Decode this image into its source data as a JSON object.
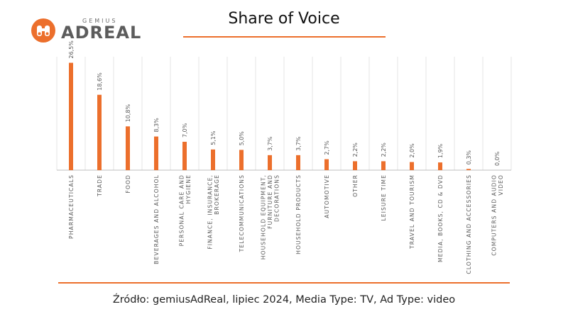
{
  "logo": {
    "brand_small": "GEMIUS",
    "brand_big": "ADREAL",
    "icon": "binoculars-icon"
  },
  "title": "Share of Voice",
  "source": "Źródło: gemiusAdReal, lipiec 2024, Media Type: TV, Ad Type: video",
  "colors": {
    "bar": "#ec6f2c",
    "accent": "#ec6f2c",
    "grid": "#e4e4e4",
    "axis": "#bfbfbf",
    "text": "#595959"
  },
  "chart_data": {
    "type": "bar",
    "title": "Share of Voice",
    "xlabel": "",
    "ylabel": "",
    "ylim": [
      0,
      28
    ],
    "grid": "vertical",
    "legend": "none",
    "categories": [
      "PHARMACEUTICALS",
      "TRADE",
      "FOOD",
      "BEVERAGES AND ALCOHOL",
      "PERSONAL CARE AND HYGIENE",
      "FINANCE, INSURANCE, BROKERAGE",
      "TELECOMMUNICATIONS",
      "HOUSEHOLD EQUIPMENT, FURNITURE AND DECORATIONS",
      "HOUSEHOLD PRODUCTS",
      "AUTOMOTIVE",
      "OTHER",
      "LEISURE TIME",
      "TRAVEL AND TOURISM",
      "MEDIA, BOOKS, CD & DVD",
      "CLOTHING AND ACCESSORIES",
      "COMPUTERS AND AUDIO VIDEO"
    ],
    "category_lines": [
      [
        "PHARMACEUTICALS"
      ],
      [
        "TRADE"
      ],
      [
        "FOOD"
      ],
      [
        "BEVERAGES AND ALCOHOL"
      ],
      [
        "PERSONAL CARE AND",
        "HYGIENE"
      ],
      [
        "FINANCE, INSURANCE,",
        "BROKERAGE"
      ],
      [
        "TELECOMMUNICATIONS"
      ],
      [
        "HOUSEHOLD EQUIPMENT,",
        "FURNITURE AND",
        "DECORATIONS"
      ],
      [
        "HOUSEHOLD PRODUCTS"
      ],
      [
        "AUTOMOTIVE"
      ],
      [
        "OTHER"
      ],
      [
        "LEISURE TIME"
      ],
      [
        "TRAVEL AND TOURISM"
      ],
      [
        "MEDIA, BOOKS, CD & DVD"
      ],
      [
        "CLOTHING AND ACCESSORIES"
      ],
      [
        "COMPUTERS AND AUDIO",
        "VIDEO"
      ]
    ],
    "values": [
      26.5,
      18.6,
      10.8,
      8.3,
      7.0,
      5.1,
      5.0,
      3.7,
      3.7,
      2.7,
      2.2,
      2.2,
      2.0,
      1.9,
      0.3,
      0.0
    ],
    "value_labels": [
      "26,5%",
      "18,6%",
      "10,8%",
      "8,3%",
      "7,0%",
      "5,1%",
      "5,0%",
      "3,7%",
      "3,7%",
      "2,7%",
      "2,2%",
      "2,2%",
      "2,0%",
      "1,9%",
      "0,3%",
      "0,0%"
    ]
  }
}
